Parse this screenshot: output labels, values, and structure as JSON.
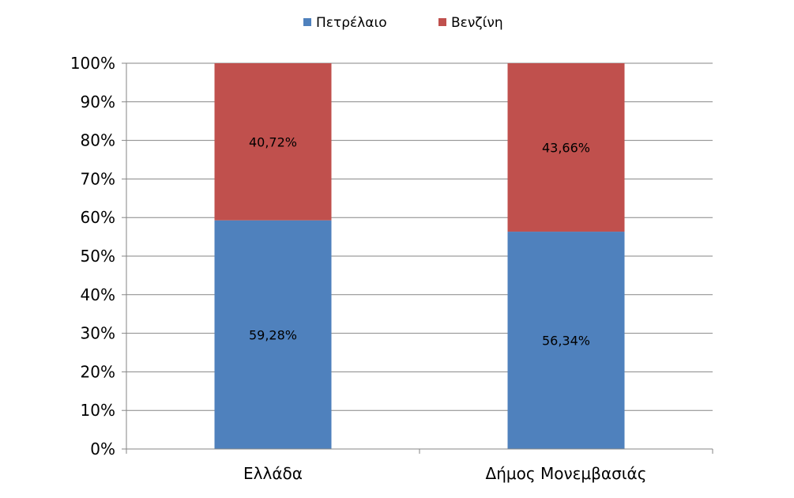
{
  "chart_data": {
    "type": "bar",
    "stacked": true,
    "percent_stacked": true,
    "categories": [
      "Ελλάδα",
      "Δήμος Μονεμβασιάς"
    ],
    "series": [
      {
        "name": "Πετρέλαιο",
        "values": [
          59.28,
          56.34
        ],
        "labels": [
          "59,28%",
          "56,34%"
        ],
        "color": "#4F81BD"
      },
      {
        "name": "Βενζίνη",
        "values": [
          40.72,
          43.66
        ],
        "labels": [
          "40,72%",
          "43,66%"
        ],
        "color": "#C0504D"
      }
    ],
    "ylim": [
      0,
      100
    ],
    "yticks": [
      "0%",
      "10%",
      "20%",
      "30%",
      "40%",
      "50%",
      "60%",
      "70%",
      "80%",
      "90%",
      "100%"
    ],
    "grid": true,
    "legend_position": "top"
  }
}
